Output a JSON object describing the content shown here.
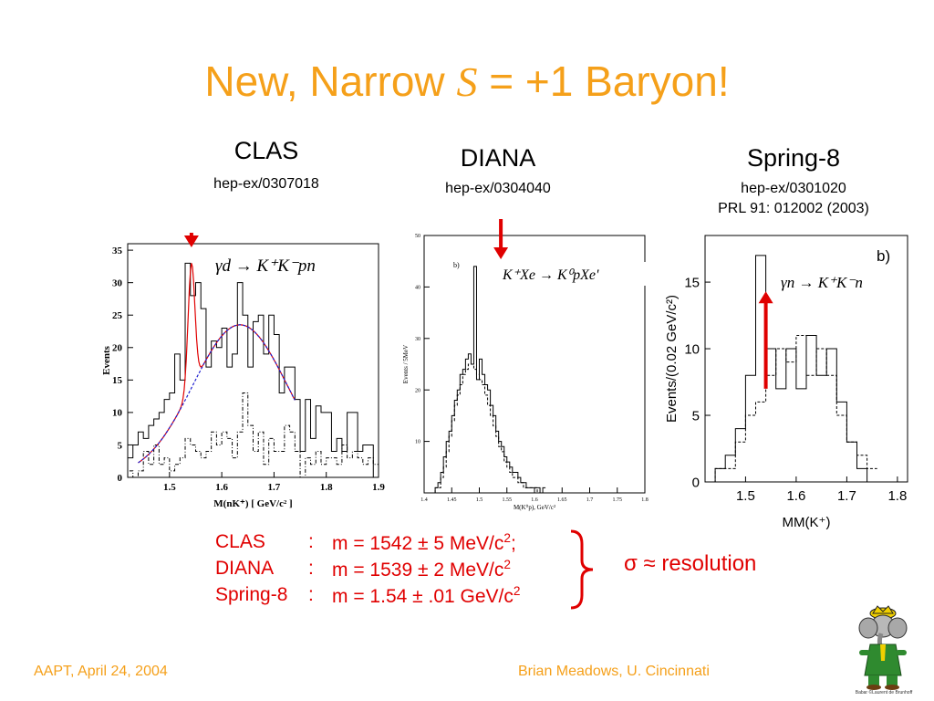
{
  "slide": {
    "title_prefix": "New, Narrow ",
    "title_symbol": "S",
    "title_suffix": " = +1 Baryon!",
    "footer_left": "AAPT, April 24, 2004",
    "footer_right": "Brian Meadows, U. Cincinnati",
    "mascot_icon": "elephant-icon",
    "mascot_caption": "Babar ©Laurent de Brunhoff"
  },
  "experiments": [
    {
      "name": "CLAS",
      "refs": [
        "hep-ex/0307018"
      ]
    },
    {
      "name": "DIANA",
      "refs": [
        "hep-ex/0304040"
      ]
    },
    {
      "name": "Spring-8",
      "refs": [
        "hep-ex/0301020",
        "PRL 91: 012002 (2003)"
      ]
    }
  ],
  "results": {
    "rows": [
      {
        "exp": "CLAS",
        "colon": ":",
        "value": "m = 1542 ± 5 MeV/c",
        "sup": "2",
        "tail": ";"
      },
      {
        "exp": "DIANA",
        "colon": ":",
        "value": "m = 1539 ± 2 MeV/c",
        "sup": "2",
        "tail": ""
      },
      {
        "exp": "Spring-8",
        "colon": ":",
        "value": "m = 1.54 ± .01 GeV/c",
        "sup": "2",
        "tail": ""
      }
    ],
    "note": "σ ≈ resolution"
  },
  "colors": {
    "title": "#f5a01a",
    "arrow": "#e00000",
    "fit": "#e00000",
    "background_fit": "#1f1fd0"
  },
  "chart_data": [
    {
      "type": "line",
      "id": "clas",
      "reaction": "γd → K⁺K⁻pn",
      "xlabel": "M(nK⁺) [ GeV/c² ]",
      "ylabel": "Events",
      "xlim": [
        1.42,
        1.9
      ],
      "ylim": [
        0,
        36
      ],
      "xticks": [
        1.5,
        1.6,
        1.7,
        1.8,
        1.9
      ],
      "yticks": [
        0,
        5,
        10,
        15,
        20,
        25,
        30,
        35
      ],
      "bin_width": 0.01,
      "arrow_x": 1.542,
      "series": [
        {
          "style": "solid",
          "x0": 1.42,
          "values": [
            3,
            5,
            7,
            6,
            8,
            9,
            10,
            12,
            13,
            19,
            15,
            33,
            28,
            30,
            26,
            17,
            21,
            20,
            23,
            17,
            19,
            30,
            25,
            17,
            24,
            25,
            19,
            25,
            22,
            13,
            17,
            17,
            12,
            4,
            12,
            6,
            11,
            10,
            10,
            4,
            6,
            4,
            10,
            10,
            4,
            5,
            5,
            0
          ]
        },
        {
          "style": "dashdot",
          "x0": 1.42,
          "values": [
            1,
            0,
            1,
            4,
            2,
            5,
            2,
            3,
            1,
            2,
            3,
            6,
            5,
            4,
            3,
            4,
            7,
            5,
            7,
            6,
            3,
            7,
            13,
            8,
            4,
            7,
            2,
            6,
            4,
            4,
            8,
            7,
            4,
            0,
            3,
            2,
            4,
            2,
            3,
            3,
            2,
            5,
            3,
            4,
            3,
            2,
            3,
            2
          ]
        },
        {
          "style": "fit",
          "curve": "gaussian peak + broad background",
          "peak_x": 1.542,
          "peak_y": 33,
          "range": [
            1.44,
            1.74
          ]
        },
        {
          "style": "background",
          "curve": "broad background",
          "peak_x": 1.635,
          "peak_y": 23.5,
          "range": [
            1.44,
            1.74
          ]
        }
      ]
    },
    {
      "type": "line",
      "id": "diana",
      "reaction": "K⁺Xe → K⁰pXe'",
      "panel_label": "b)",
      "xlabel": "M(K⁰p), GeV/c²",
      "ylabel": "Events / 5MeV",
      "xlim": [
        1.4,
        1.8
      ],
      "ylim": [
        0,
        50
      ],
      "xticks": [
        1.4,
        1.45,
        1.5,
        1.55,
        1.6,
        1.65,
        1.7,
        1.75,
        1.8
      ],
      "yticks": [
        10,
        20,
        30,
        40,
        50
      ],
      "bin_width": 0.005,
      "arrow_x": 1.539,
      "series": [
        {
          "style": "solid",
          "x0": 1.42,
          "values": [
            1,
            2,
            4,
            7,
            10,
            12,
            15,
            18,
            20,
            23,
            24,
            26,
            27,
            25,
            44,
            22,
            26,
            23,
            21,
            20,
            17,
            15,
            12,
            10,
            9,
            7,
            6,
            5,
            4,
            4,
            3,
            2,
            2,
            1,
            1,
            1,
            1,
            1,
            0,
            1
          ]
        },
        {
          "style": "dashed",
          "x0": 1.42,
          "values": [
            1,
            1,
            3,
            5,
            8,
            11,
            14,
            17,
            19,
            21,
            23,
            24,
            25,
            25,
            24,
            23,
            22,
            21,
            19,
            17,
            15,
            13,
            11,
            9,
            8,
            6,
            5,
            4,
            3,
            3,
            2,
            2,
            1,
            1,
            1,
            1,
            1,
            0,
            0,
            0
          ]
        }
      ]
    },
    {
      "type": "line",
      "id": "spring8",
      "reaction": "γn → K⁺K⁻n",
      "panel_label": "b)",
      "xlabel": "MM(K⁺)",
      "ylabel": "Events/(0.02 GeV/c²)",
      "xlim": [
        1.42,
        1.82
      ],
      "ylim": [
        0,
        18.5
      ],
      "xticks": [
        1.5,
        1.6,
        1.7,
        1.8
      ],
      "yticks": [
        0,
        5,
        10,
        15
      ],
      "bin_width": 0.02,
      "arrow_x": 1.54,
      "series": [
        {
          "style": "solid",
          "x0": 1.42,
          "values": [
            0,
            1,
            2,
            4,
            8,
            17,
            10,
            7,
            10,
            7,
            11,
            8,
            10,
            6,
            3,
            1,
            0
          ]
        },
        {
          "style": "dashed",
          "x0": 1.42,
          "values": [
            0,
            1,
            1,
            3,
            5,
            6,
            8,
            10,
            9,
            11,
            8,
            10,
            8,
            5,
            3,
            2,
            1
          ]
        }
      ]
    }
  ]
}
